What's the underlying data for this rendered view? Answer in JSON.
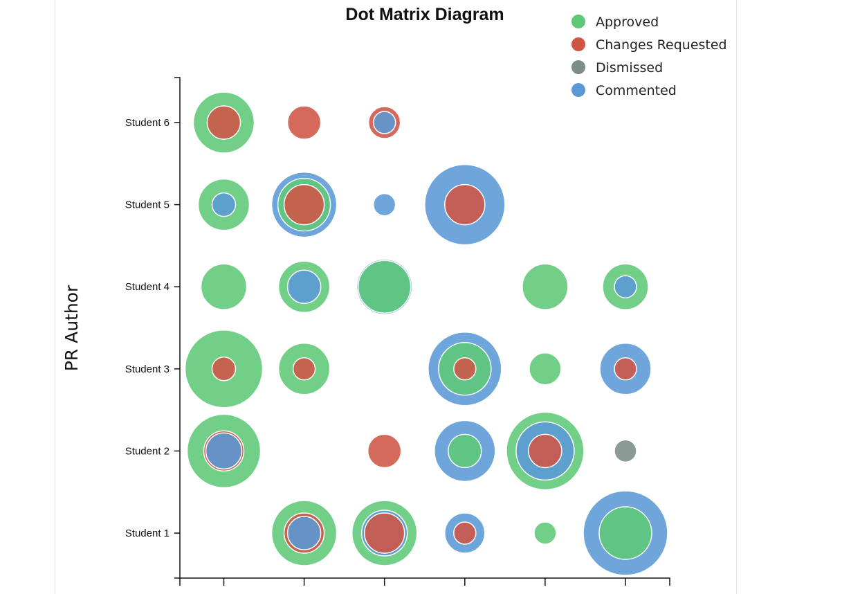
{
  "chart_data": {
    "type": "scatter",
    "title": "Dot Matrix Diagram",
    "ylabel": "PR Author",
    "xlabel": "",
    "categories": [
      "Student 1",
      "Student 2",
      "Student 3",
      "Student 4",
      "Student 5",
      "Student 6"
    ],
    "x_columns": 6,
    "legend_position": "top-right",
    "series": [
      {
        "name": "Approved",
        "color": "#5fc878"
      },
      {
        "name": "Changes Requested",
        "color": "#cf5546"
      },
      {
        "name": "Dismissed",
        "color": "#7c8c88"
      },
      {
        "name": "Commented",
        "color": "#5a98d6"
      }
    ],
    "dots": [
      {
        "student": "Student 6",
        "col": 1,
        "rings": [
          [
            "Approved",
            44
          ],
          [
            "Changes Requested",
            24
          ]
        ]
      },
      {
        "student": "Student 6",
        "col": 2,
        "rings": [
          [
            "Changes Requested",
            24
          ]
        ]
      },
      {
        "student": "Student 6",
        "col": 3,
        "rings": [
          [
            "Changes Requested",
            23
          ],
          [
            "Commented",
            16
          ]
        ]
      },
      {
        "student": "Student 5",
        "col": 1,
        "rings": [
          [
            "Approved",
            37
          ],
          [
            "Commented",
            17
          ]
        ]
      },
      {
        "student": "Student 5",
        "col": 2,
        "rings": [
          [
            "Commented",
            47
          ],
          [
            "Approved",
            38
          ],
          [
            "Changes Requested",
            29
          ]
        ]
      },
      {
        "student": "Student 5",
        "col": 3,
        "rings": [
          [
            "Commented",
            16
          ]
        ]
      },
      {
        "student": "Student 5",
        "col": 4,
        "rings": [
          [
            "Commented",
            58
          ],
          [
            "Changes Requested",
            29
          ]
        ]
      },
      {
        "student": "Student 4",
        "col": 1,
        "rings": [
          [
            "Approved",
            33
          ]
        ]
      },
      {
        "student": "Student 4",
        "col": 2,
        "rings": [
          [
            "Approved",
            37
          ],
          [
            "Commented",
            24
          ]
        ]
      },
      {
        "student": "Student 4",
        "col": 3,
        "rings": [
          [
            "Commented",
            40
          ],
          [
            "Approved",
            38
          ]
        ]
      },
      {
        "student": "Student 4",
        "col": 5,
        "rings": [
          [
            "Approved",
            33
          ]
        ]
      },
      {
        "student": "Student 4",
        "col": 6,
        "rings": [
          [
            "Approved",
            33
          ],
          [
            "Commented",
            16
          ]
        ]
      },
      {
        "student": "Student 3",
        "col": 1,
        "rings": [
          [
            "Approved",
            56
          ],
          [
            "Changes Requested",
            17
          ]
        ]
      },
      {
        "student": "Student 3",
        "col": 2,
        "rings": [
          [
            "Approved",
            37
          ],
          [
            "Changes Requested",
            16
          ]
        ]
      },
      {
        "student": "Student 3",
        "col": 4,
        "rings": [
          [
            "Commented",
            53
          ],
          [
            "Approved",
            38
          ],
          [
            "Changes Requested",
            16
          ]
        ]
      },
      {
        "student": "Student 3",
        "col": 5,
        "rings": [
          [
            "Approved",
            23
          ]
        ]
      },
      {
        "student": "Student 3",
        "col": 6,
        "rings": [
          [
            "Commented",
            37
          ],
          [
            "Changes Requested",
            16
          ]
        ]
      },
      {
        "student": "Student 2",
        "col": 1,
        "rings": [
          [
            "Approved",
            53
          ],
          [
            "Changes Requested",
            29
          ],
          [
            "Commented",
            26
          ]
        ]
      },
      {
        "student": "Student 2",
        "col": 3,
        "rings": [
          [
            "Changes Requested",
            24
          ]
        ]
      },
      {
        "student": "Student 2",
        "col": 4,
        "rings": [
          [
            "Commented",
            44
          ],
          [
            "Approved",
            24
          ]
        ]
      },
      {
        "student": "Student 2",
        "col": 5,
        "rings": [
          [
            "Approved",
            56
          ],
          [
            "Commented",
            42
          ],
          [
            "Changes Requested",
            24
          ]
        ]
      },
      {
        "student": "Student 2",
        "col": 6,
        "rings": [
          [
            "Dismissed",
            16
          ]
        ]
      },
      {
        "student": "Student 1",
        "col": 2,
        "rings": [
          [
            "Approved",
            47
          ],
          [
            "Changes Requested",
            29
          ],
          [
            "Commented",
            24
          ]
        ]
      },
      {
        "student": "Student 1",
        "col": 3,
        "rings": [
          [
            "Approved",
            47
          ],
          [
            "Commented",
            33
          ],
          [
            "Changes Requested",
            29
          ]
        ]
      },
      {
        "student": "Student 1",
        "col": 4,
        "rings": [
          [
            "Commented",
            29
          ],
          [
            "Changes Requested",
            16
          ]
        ]
      },
      {
        "student": "Student 1",
        "col": 5,
        "rings": [
          [
            "Approved",
            16
          ]
        ]
      },
      {
        "student": "Student 1",
        "col": 6,
        "rings": [
          [
            "Commented",
            61
          ],
          [
            "Approved",
            38
          ]
        ]
      }
    ]
  }
}
